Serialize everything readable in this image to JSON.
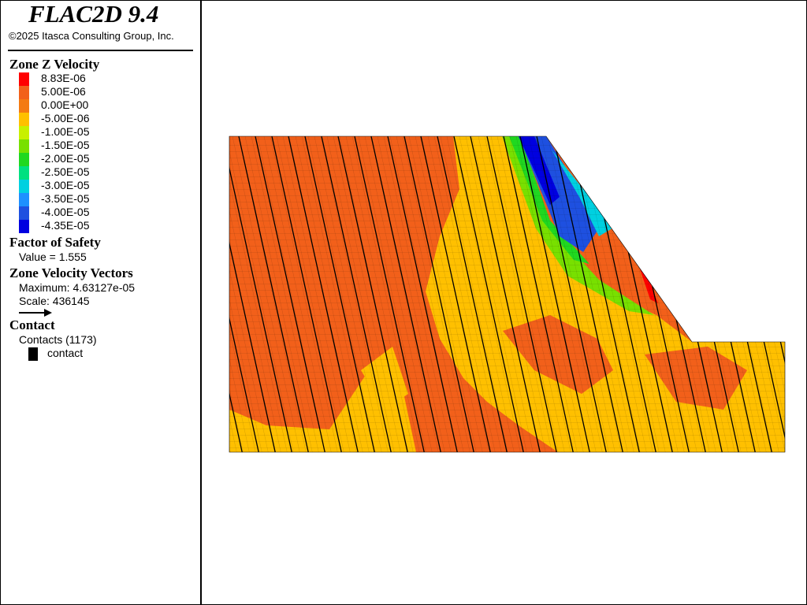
{
  "header": {
    "title": "FLAC2D 9.4",
    "copyright": "©2025 Itasca Consulting Group, Inc."
  },
  "legend": {
    "zone_z_velocity": {
      "title": "Zone Z Velocity",
      "labels": [
        "8.83E-06",
        "5.00E-06",
        "0.00E+00",
        "-5.00E-06",
        "-1.00E-05",
        "-1.50E-05",
        "-2.00E-05",
        "-2.50E-05",
        "-3.00E-05",
        "-3.50E-05",
        "-4.00E-05",
        "-4.35E-05"
      ],
      "colors": [
        "#ff0000",
        "#f2601a",
        "#f47a12",
        "#ffc000",
        "#c8f000",
        "#78e000",
        "#20d820",
        "#00e080",
        "#00d0e0",
        "#1e90ff",
        "#1e50e0",
        "#0000e0"
      ]
    },
    "factor_of_safety": {
      "title": "Factor of Safety",
      "value": "Value = 1.555"
    },
    "zone_velocity_vectors": {
      "title": "Zone Velocity Vectors",
      "maximum": "Maximum: 4.63127e-05",
      "scale": "Scale: 436145"
    },
    "contact": {
      "title": "Contact",
      "count": "Contacts (1173)",
      "item": "contact"
    }
  }
}
